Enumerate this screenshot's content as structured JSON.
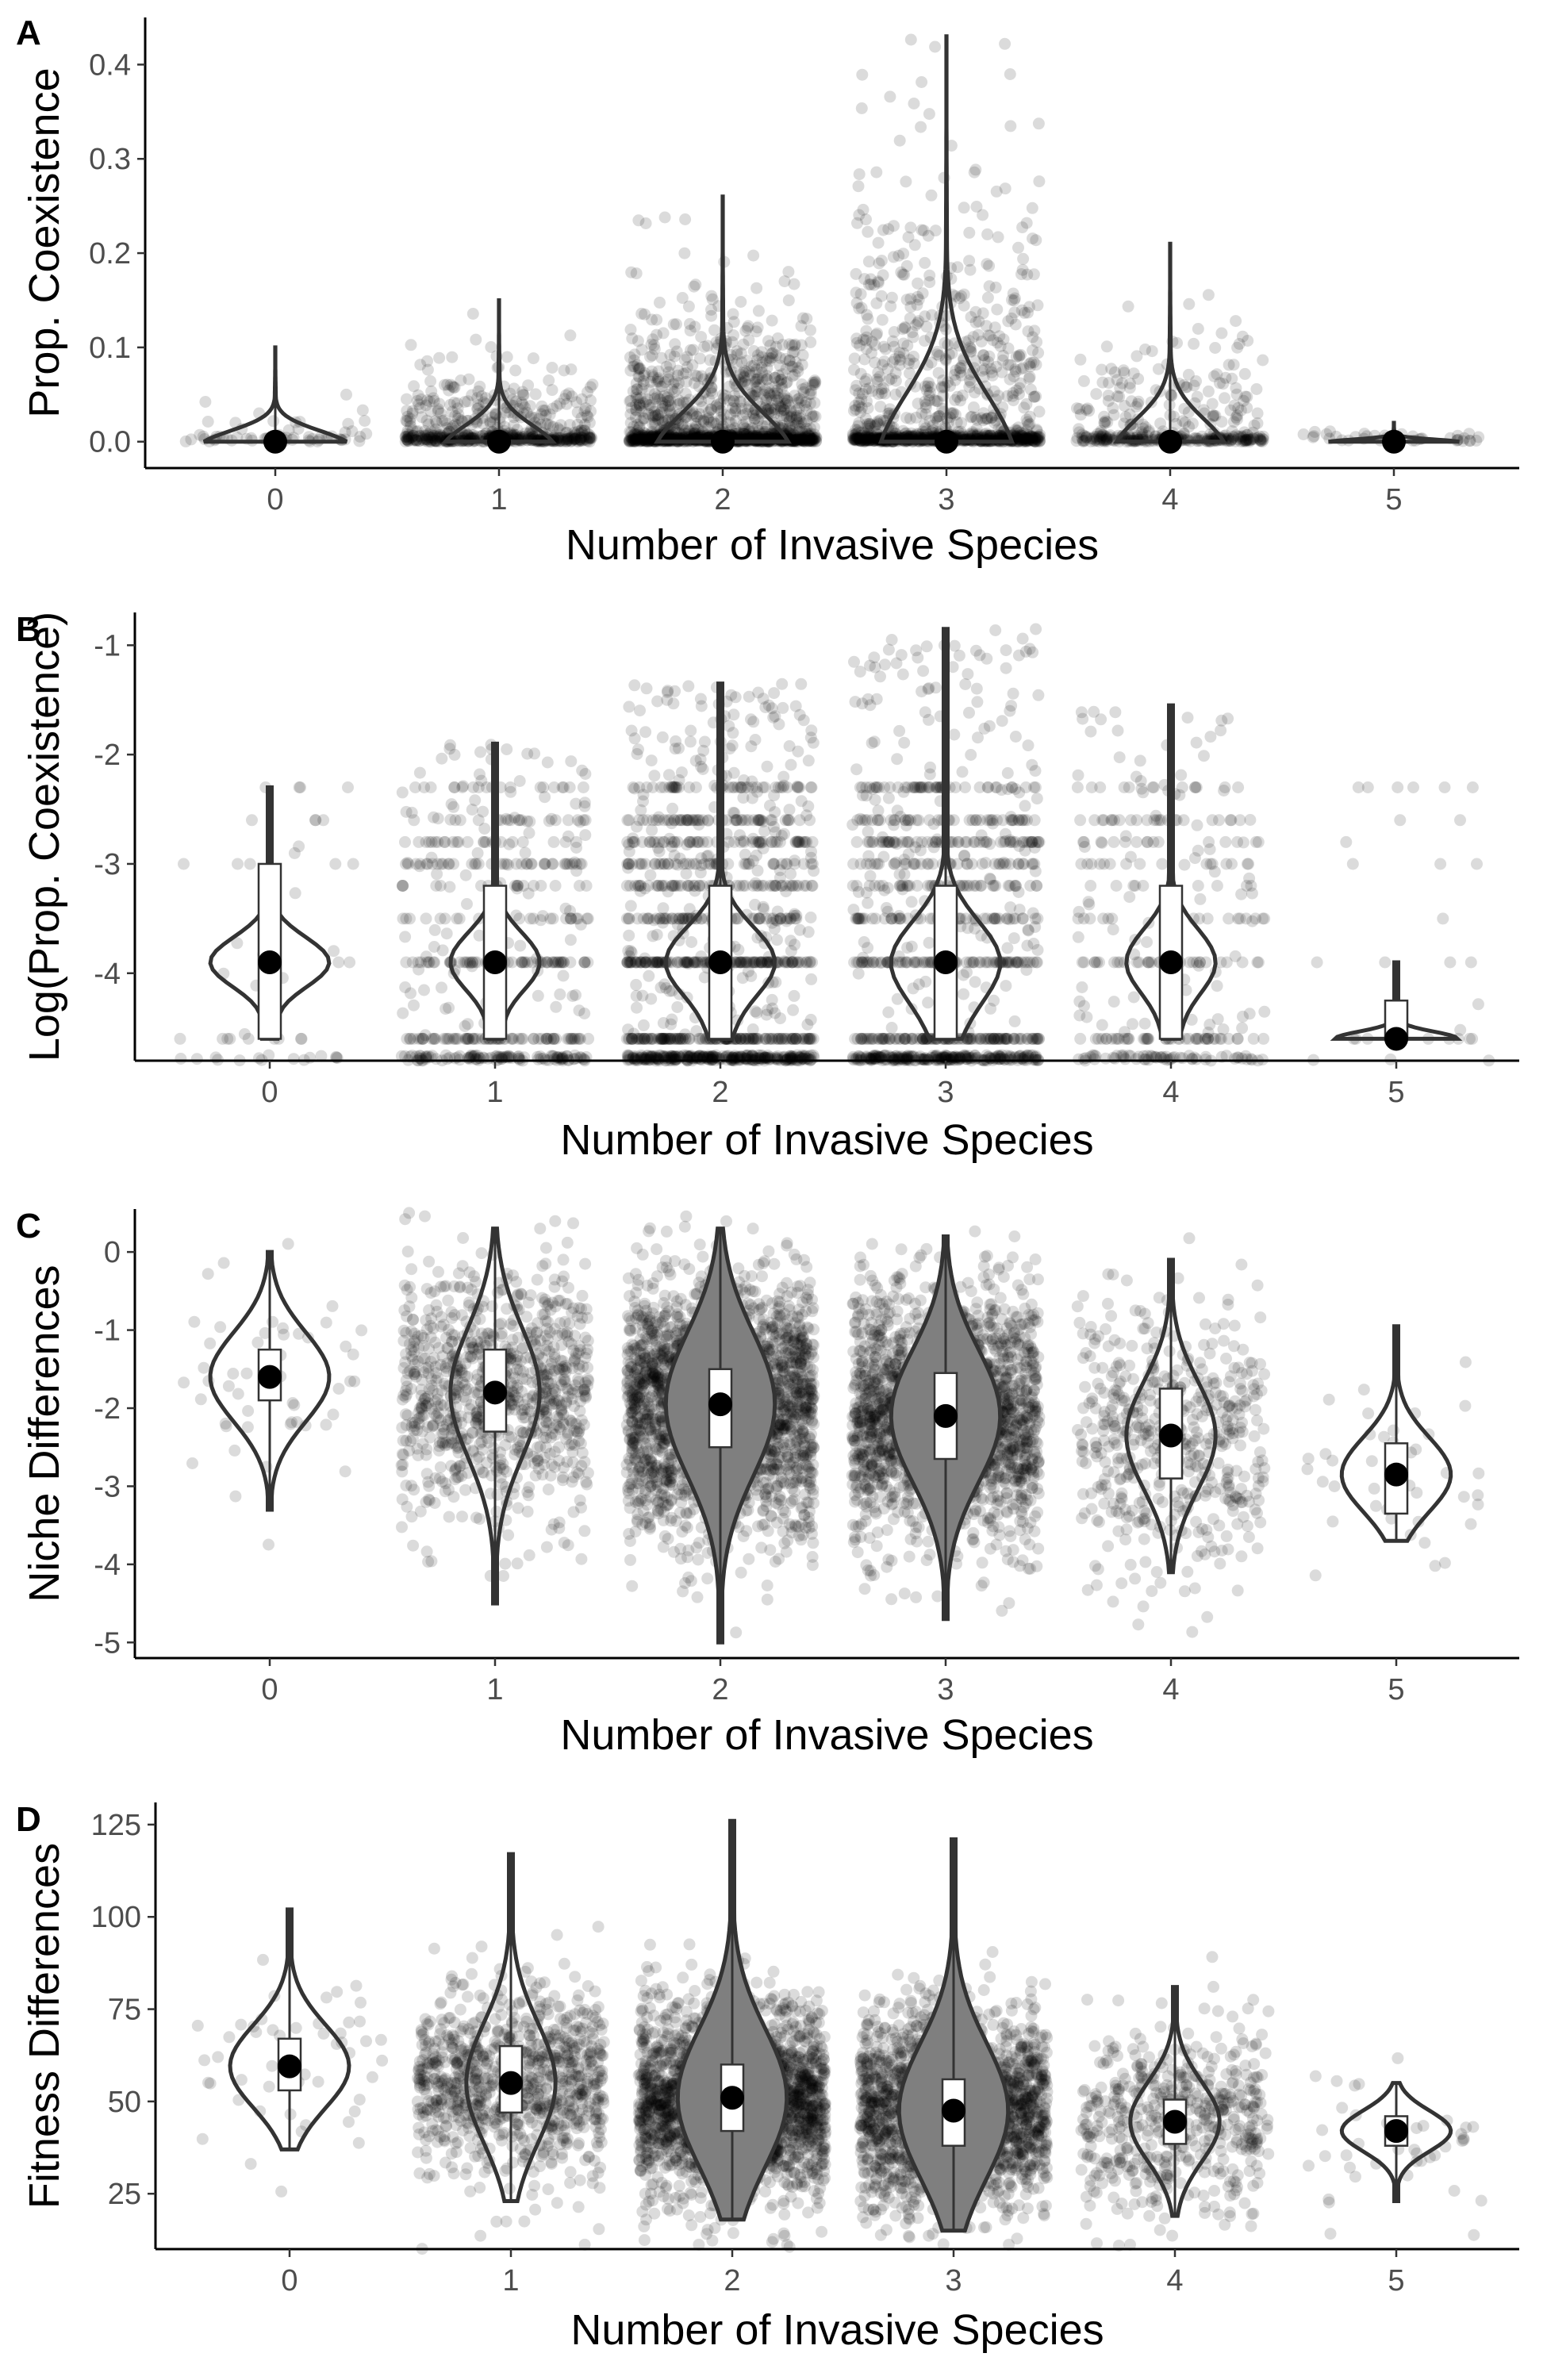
{
  "chart_data": [
    {
      "panel": "A",
      "type": "violin",
      "xlabel": "Number of Invasive Species",
      "ylabel": "Prop. Coexistence",
      "categories": [
        "0",
        "1",
        "2",
        "3",
        "4",
        "5"
      ],
      "ylim": [
        -0.028,
        0.45
      ],
      "yticks": [
        0.0,
        0.1,
        0.2,
        0.3,
        0.4
      ],
      "ytick_labels": [
        "0.0",
        "0.1",
        "0.2",
        "0.3",
        "0.4"
      ],
      "medians": [
        0.0,
        0.0,
        0.0,
        0.0,
        0.0,
        0.0
      ],
      "ranges": [
        [
          0.0,
          0.1
        ],
        [
          0.0,
          0.15
        ],
        [
          0.0,
          0.26
        ],
        [
          0.0,
          0.43
        ],
        [
          0.0,
          0.21
        ],
        [
          0.0,
          0.02
        ]
      ],
      "point_counts": [
        60,
        600,
        1400,
        1100,
        380,
        40
      ],
      "grid": false,
      "legend": "none"
    },
    {
      "panel": "B",
      "type": "violin",
      "xlabel": "Number of Invasive Species",
      "ylabel": "Log(Prop. Coexistence)",
      "categories": [
        "0",
        "1",
        "2",
        "3",
        "4",
        "5"
      ],
      "ylim": [
        -4.8,
        -0.7
      ],
      "yticks": [
        -4,
        -3,
        -2,
        -1
      ],
      "ytick_labels": [
        "-4",
        "-3",
        "-2",
        "-1"
      ],
      "medians": [
        -3.9,
        -3.9,
        -3.9,
        -3.9,
        -3.9,
        -4.6
      ],
      "q1": [
        -4.6,
        -4.6,
        -4.6,
        -4.6,
        -4.6,
        -4.6
      ],
      "q3": [
        -3.0,
        -3.2,
        -3.2,
        -3.2,
        -3.2,
        -4.25
      ],
      "ranges": [
        [
          -4.6,
          -2.3
        ],
        [
          -4.6,
          -1.9
        ],
        [
          -4.6,
          -1.35
        ],
        [
          -4.6,
          -0.85
        ],
        [
          -4.6,
          -1.55
        ],
        [
          -4.6,
          -3.9
        ]
      ],
      "point_counts": [
        50,
        500,
        1200,
        950,
        320,
        30
      ],
      "grid": false,
      "legend": "none"
    },
    {
      "panel": "C",
      "type": "violin",
      "xlabel": "Number of Invasive Species",
      "ylabel": "Niche Differences",
      "categories": [
        "0",
        "1",
        "2",
        "3",
        "4",
        "5"
      ],
      "ylim": [
        -5.2,
        0.55
      ],
      "yticks": [
        -5,
        -4,
        -3,
        -2,
        -1,
        0
      ],
      "ytick_labels": [
        "-5",
        "-4",
        "-3",
        "-2",
        "-1",
        "0"
      ],
      "medians": [
        -1.6,
        -1.8,
        -1.95,
        -2.1,
        -2.35,
        -2.85
      ],
      "q1": [
        -1.9,
        -2.3,
        -2.5,
        -2.65,
        -2.9,
        -3.35
      ],
      "q3": [
        -1.25,
        -1.25,
        -1.5,
        -1.55,
        -1.75,
        -2.45
      ],
      "ranges": [
        [
          -3.3,
          0.0
        ],
        [
          -4.5,
          0.3
        ],
        [
          -5.0,
          0.3
        ],
        [
          -4.7,
          0.2
        ],
        [
          -4.1,
          -0.1
        ],
        [
          -3.7,
          -0.95
        ]
      ],
      "point_counts": [
        50,
        900,
        2200,
        1900,
        520,
        40
      ],
      "grid": false,
      "legend": "none"
    },
    {
      "panel": "D",
      "type": "violin",
      "xlabel": "Number of Invasive Species",
      "ylabel": "Fitness Differences",
      "categories": [
        "0",
        "1",
        "2",
        "3",
        "4",
        "5"
      ],
      "ylim": [
        10,
        131
      ],
      "yticks": [
        25,
        50,
        75,
        100,
        125
      ],
      "ytick_labels": [
        "25",
        "50",
        "75",
        "100",
        "125"
      ],
      "medians": [
        59.5,
        55,
        51,
        47.5,
        44.5,
        42
      ],
      "q1": [
        53,
        47,
        42,
        38,
        38.5,
        38
      ],
      "q3": [
        67,
        65,
        60,
        56,
        50.5,
        46
      ],
      "ranges": [
        [
          37,
          102
        ],
        [
          23,
          117
        ],
        [
          18,
          126
        ],
        [
          15,
          121
        ],
        [
          19,
          81
        ],
        [
          23,
          55
        ]
      ],
      "point_counts": [
        50,
        900,
        2200,
        1900,
        520,
        40
      ],
      "grid": false,
      "legend": "none"
    }
  ]
}
